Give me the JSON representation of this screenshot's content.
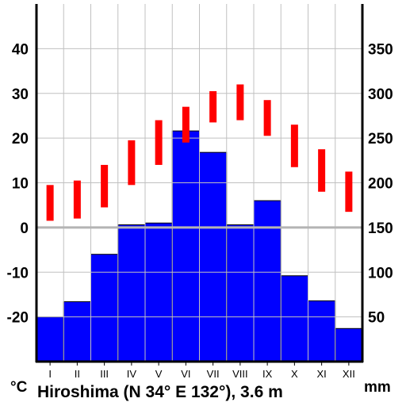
{
  "chart_data": {
    "type": "bar",
    "title": "Hiroshima (N 34° E 132°), 3.6 m",
    "categories": [
      "I",
      "II",
      "III",
      "IV",
      "V",
      "VI",
      "VII",
      "VIII",
      "IX",
      "X",
      "XI",
      "XII"
    ],
    "series": [
      {
        "name": "",
        "kind": "bar",
        "axis": "right",
        "unit": "mm",
        "values": [
          50,
          67,
          120,
          153,
          155,
          258,
          234,
          153,
          180,
          96,
          68,
          37
        ]
      },
      {
        "name": "",
        "kind": "range",
        "axis": "left",
        "unit": "°C",
        "low": [
          1.5,
          2.0,
          4.5,
          9.5,
          14.0,
          19.0,
          23.5,
          24.0,
          20.5,
          13.5,
          8.0,
          3.5
        ],
        "high": [
          9.5,
          10.5,
          14.0,
          19.5,
          24.0,
          27.0,
          30.5,
          32.0,
          28.5,
          23.0,
          17.5,
          12.5
        ]
      }
    ],
    "y_left": {
      "unit": "°C",
      "ylim": [
        -30,
        50
      ],
      "ticks": [
        40,
        30,
        20,
        10,
        0,
        -10,
        -20
      ],
      "tick_labels": [
        "40",
        "30",
        "20",
        "10",
        "0",
        "-10",
        "-20"
      ]
    },
    "y_right": {
      "unit": "mm",
      "ylim": [
        0,
        400
      ],
      "ticks": [
        350,
        300,
        250,
        200,
        150,
        100,
        50
      ],
      "tick_labels": [
        "350",
        "300",
        "250",
        "200",
        "150",
        "100",
        "50"
      ]
    },
    "grid": true,
    "colors": {
      "bar": "#0000ff",
      "bar_edge": "#000000",
      "temp_range": "#ff0000",
      "grid": "#c0c0c0",
      "zero_line": "#b4b4b4",
      "axis": "#000000"
    }
  }
}
